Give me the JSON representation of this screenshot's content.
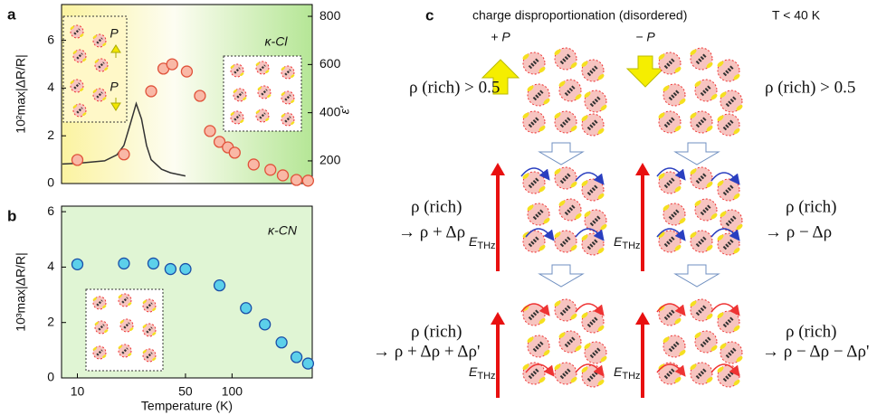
{
  "chart_data": [
    {
      "type": "scatter",
      "panel": "a",
      "ylabel": "10²max|ΔR/R|",
      "y2label": "ε'",
      "annotations": [
        "κ-Cl",
        "P",
        "P"
      ],
      "xscale": "log",
      "xlim": [
        7.9,
        330
      ],
      "ylim": [
        0,
        7.5
      ],
      "yticks": [
        0,
        2,
        4,
        6
      ],
      "y2lim": [
        106,
        849
      ],
      "y2ticks": [
        200,
        400,
        600,
        800
      ],
      "series": [
        {
          "mode": "line",
          "color": "#333333",
          "x": [
            8,
            10,
            15,
            18,
            20,
            22,
            24,
            26,
            28,
            30,
            35,
            40,
            50
          ],
          "values": [
            0.82,
            0.85,
            0.95,
            1.2,
            1.6,
            2.5,
            3.35,
            2.7,
            1.6,
            1.0,
            0.6,
            0.45,
            0.32
          ]
        },
        {
          "mode": "markers",
          "axis": "y2",
          "color": "#f9b8a6",
          "edgecolor": "#e0523a",
          "x": [
            10,
            20,
            30,
            36,
            41,
            51,
            62,
            72,
            83,
            94,
            104,
            138,
            177,
            213,
            261,
            310
          ],
          "values": [
            204,
            227,
            489,
            583,
            601,
            571,
            470,
            324,
            279,
            256,
            234,
            185,
            163,
            140,
            121,
            118
          ]
        }
      ]
    },
    {
      "type": "scatter",
      "panel": "b",
      "ylabel": "10³max|ΔR/R|",
      "xlabel": "Temperature (K)",
      "annotations": [
        "κ-CN"
      ],
      "xscale": "log",
      "xlim": [
        7.9,
        330
      ],
      "xticks": [
        10,
        50,
        100
      ],
      "ylim": [
        0,
        6.2
      ],
      "yticks": [
        0,
        2,
        4,
        6
      ],
      "series": [
        {
          "mode": "markers",
          "color": "#5cd0ea",
          "edgecolor": "#1a4fa8",
          "x": [
            10,
            20,
            31,
            40,
            50,
            83,
            123,
            163,
            209,
            261,
            310
          ],
          "values": [
            4.1,
            4.13,
            4.13,
            3.93,
            3.93,
            3.34,
            2.52,
            1.93,
            1.28,
            0.75,
            0.52
          ]
        }
      ]
    }
  ],
  "diagram": {
    "panel": "c",
    "title": "charge disproportionation (disordered)",
    "condition": "T < 40 K",
    "pressure": [
      "+ P",
      "− P"
    ],
    "states": [
      {
        "left": [
          "ρ (rich) > 0.5"
        ],
        "right": [
          "ρ (rich) > 0.5"
        ]
      },
      {
        "left": [
          "ρ (rich)",
          "→ ρ + Δρ"
        ],
        "right": [
          "ρ (rich)",
          "→ ρ − Δρ"
        ]
      },
      {
        "left": [
          "ρ (rich)",
          "→ ρ + Δρ + Δρ'"
        ],
        "right": [
          "ρ (rich)",
          "→ ρ − Δρ − Δρ'"
        ]
      }
    ],
    "field": "E",
    "field_subscript": "THz"
  }
}
